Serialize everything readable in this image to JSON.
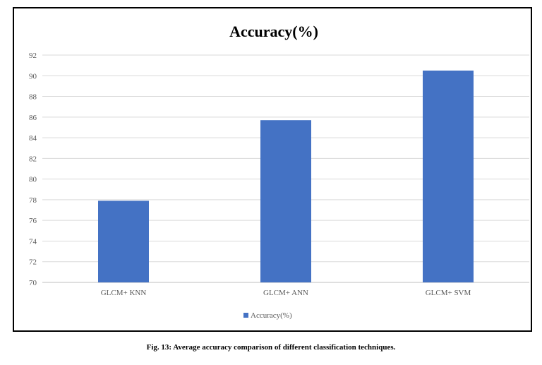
{
  "caption": "Fig. 13: Average accuracy comparison of different classification techniques.",
  "chart_data": {
    "type": "bar",
    "title": "Accuracy(%)",
    "categories": [
      "GLCM+ KNN",
      "GLCM+ ANN",
      "GLCM+ SVM"
    ],
    "series": [
      {
        "name": "Accuracy(%)",
        "values": [
          77.9,
          85.7,
          90.5
        ]
      }
    ],
    "xlabel": "",
    "ylabel": "",
    "ylim": [
      70,
      92
    ],
    "yticks": [
      70,
      72,
      74,
      76,
      78,
      80,
      82,
      84,
      86,
      88,
      90,
      92
    ],
    "grid": true,
    "legend": "bottom-center",
    "colors": {
      "bar": "#4472C4",
      "grid": "#D9D9D9",
      "axis": "#BFBFBF",
      "text": "#595959"
    }
  }
}
